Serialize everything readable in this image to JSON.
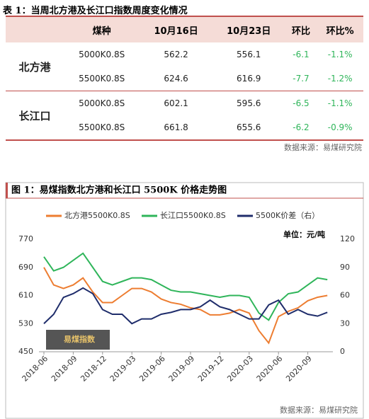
{
  "table_title": "表 1：当周北方港及长江口指数周度变化情况",
  "table": {
    "headers": [
      "煤种",
      "10月16日",
      "10月23日",
      "环比",
      "环比%"
    ],
    "groups": [
      {
        "name": "北方港",
        "rows": [
          [
            "5000K0.8S",
            "562.2",
            "556.1",
            "-6.1",
            "-1.1%"
          ],
          [
            "5500K0.8S",
            "624.6",
            "616.9",
            "-7.7",
            "-1.2%"
          ]
        ]
      },
      {
        "name": "长江口",
        "rows": [
          [
            "5000K0.8S",
            "602.1",
            "595.6",
            "-6.5",
            "-1.1%"
          ],
          [
            "5500K0.8S",
            "661.8",
            "655.6",
            "-6.2",
            "-0.9%"
          ]
        ]
      }
    ]
  },
  "table_source": "数据来源：易煤研究院",
  "chart_title": "图 1：易煤指数北方港和长江口 5500K 价格走势图",
  "chart_data": {
    "type": "line",
    "unit": "单位：元/吨",
    "watermark": "易煤指数",
    "x": [
      "2018-06",
      "2018-07",
      "2018-08",
      "2018-09",
      "2018-10",
      "2018-11",
      "2018-12",
      "2019-01",
      "2019-02",
      "2019-03",
      "2019-04",
      "2019-05",
      "2019-06",
      "2019-07",
      "2019-08",
      "2019-09",
      "2019-10",
      "2019-11",
      "2019-12",
      "2020-01",
      "2020-02",
      "2020-03",
      "2020-04",
      "2020-05",
      "2020-06",
      "2020-07",
      "2020-08",
      "2020-09",
      "2020-10",
      "2020-11"
    ],
    "xticks": [
      "2018-06",
      "2018-09",
      "2018-12",
      "2019-03",
      "2019-06",
      "2019-09",
      "2019-12",
      "2020-03",
      "2020-06",
      "2020-09"
    ],
    "ylim": [
      450,
      770
    ],
    "yticks": [
      450,
      530,
      610,
      690,
      770
    ],
    "y2lim": [
      0,
      120
    ],
    "y2ticks": [
      0,
      30,
      60,
      90,
      120
    ],
    "series": [
      {
        "name": "北方港5500K0.8S",
        "color": "#ed7d31",
        "values": [
          690,
          640,
          630,
          640,
          660,
          620,
          590,
          590,
          610,
          630,
          630,
          620,
          600,
          590,
          585,
          575,
          570,
          555,
          555,
          560,
          570,
          560,
          510,
          475,
          550,
          565,
          575,
          595,
          605,
          610
        ]
      },
      {
        "name": "长江口5500K0.8S",
        "color": "#2fb55a",
        "values": [
          720,
          680,
          690,
          710,
          730,
          690,
          650,
          640,
          650,
          660,
          660,
          655,
          640,
          625,
          620,
          620,
          615,
          610,
          605,
          610,
          610,
          605,
          560,
          540,
          590,
          615,
          620,
          640,
          660,
          655
        ]
      },
      {
        "name": "5500K价差（右）",
        "color": "#1f2d6b",
        "axis": "y2",
        "values": [
          30,
          40,
          58,
          62,
          68,
          62,
          45,
          40,
          40,
          30,
          35,
          35,
          40,
          42,
          45,
          45,
          48,
          55,
          48,
          45,
          40,
          35,
          35,
          50,
          55,
          40,
          45,
          40,
          38,
          42
        ]
      }
    ]
  },
  "chart_source": "数据来源：易煤研究院"
}
